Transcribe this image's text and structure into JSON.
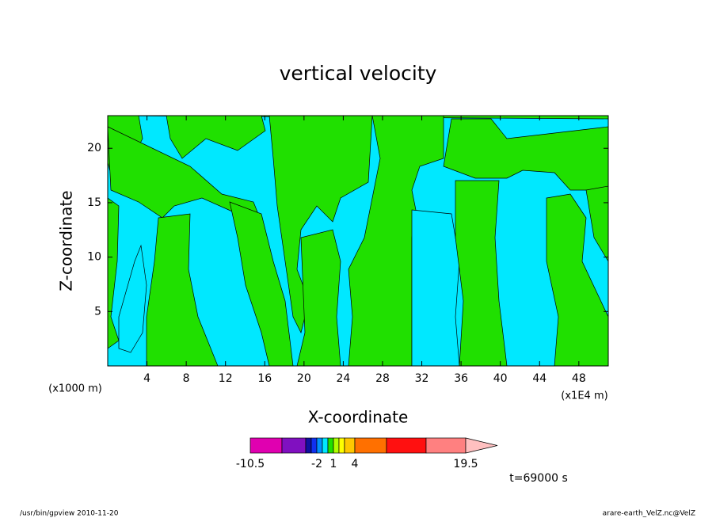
{
  "chart_data": {
    "type": "contour",
    "title": "vertical velocity",
    "xlabel": "X-coordinate",
    "ylabel": "Z-coordinate",
    "x_unit_label": "(x1000 m)",
    "x_unit_label_right": "(x1E4 m)",
    "xlim": [
      0,
      51
    ],
    "xticks": [
      4,
      8,
      12,
      16,
      20,
      24,
      28,
      32,
      36,
      40,
      44,
      48
    ],
    "ylim": [
      0,
      23
    ],
    "yticks": [
      5,
      10,
      15,
      20
    ],
    "colorbar": {
      "colors": [
        "#e000b0",
        "#8010c0",
        "#1010a0",
        "#1030f0",
        "#0090ff",
        "#00e8ff",
        "#20e000",
        "#b0ff00",
        "#ffff00",
        "#ffc800",
        "#ff7000",
        "#ff1010",
        "#ff8080",
        "#ffc0c0"
      ],
      "ticks": [
        -10.5,
        -2,
        1,
        4,
        19.5
      ]
    },
    "time_label": "t=69000 s",
    "footer_left": "/usr/bin/gpview   2010-11-20",
    "footer_right": "arare-earth_VelZ.nc@VelZ"
  }
}
